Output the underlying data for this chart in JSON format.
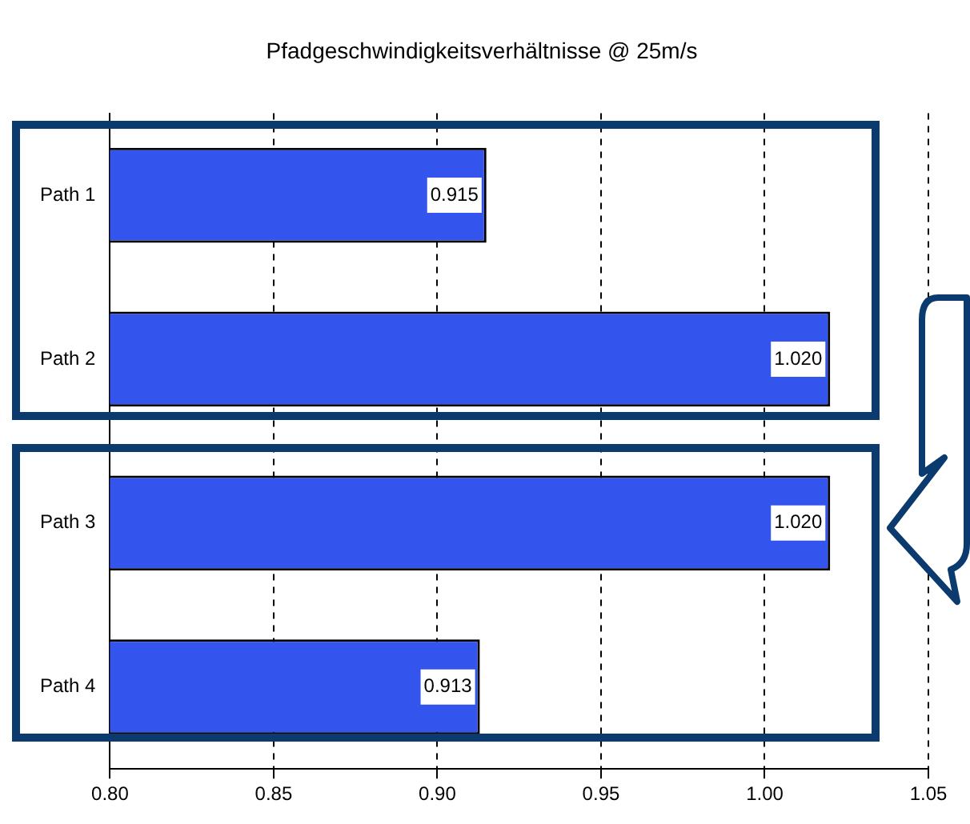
{
  "chart_data": {
    "type": "bar",
    "orientation": "horizontal",
    "title": "Pfadgeschwindigkeitsverhältnisse @ 25m/s",
    "categories": [
      "Path 1",
      "Path 2",
      "Path 3",
      "Path 4"
    ],
    "values": [
      0.915,
      1.02,
      1.02,
      0.913
    ],
    "value_labels": [
      "0.915",
      "1.020",
      "1.020",
      "0.913"
    ],
    "color": "#3355ee",
    "xlim": [
      0.8,
      1.05
    ],
    "xticks": [
      {
        "value": 0.8,
        "label": "0.80"
      },
      {
        "value": 0.85,
        "label": "0.85"
      },
      {
        "value": 0.9,
        "label": "0.90"
      },
      {
        "value": 0.95,
        "label": "0.95"
      },
      {
        "value": 1.0,
        "label": "1.00"
      },
      {
        "value": 1.05,
        "label": "1.05"
      }
    ],
    "grid": "x",
    "legend": false
  }
}
